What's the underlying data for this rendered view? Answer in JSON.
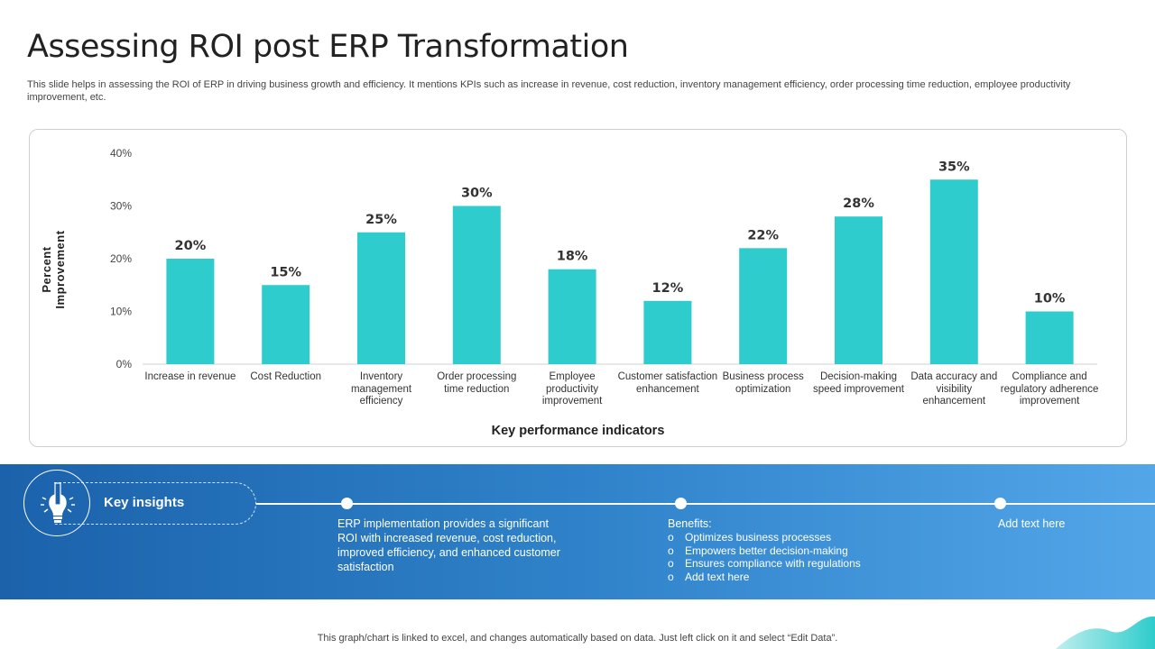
{
  "header": {
    "title": "Assessing ROI post ERP Transformation",
    "subtitle": "This slide helps in assessing the ROI of ERP in driving business growth and efficiency. It mentions KPIs such as increase in revenue, cost reduction, inventory management efficiency, order processing time reduction, employee productivity improvement, etc."
  },
  "chart_data": {
    "type": "bar",
    "categories": [
      "Increase in revenue",
      "Cost Reduction",
      "Inventory management efficiency",
      "Order processing time reduction",
      "Employee productivity improvement",
      "Customer satisfaction enhancement",
      "Business process optimization",
      "Decision-making speed improvement",
      "Data accuracy and visibility enhancement",
      "Compliance and regulatory adherence improvement"
    ],
    "values": [
      20,
      15,
      25,
      30,
      18,
      12,
      22,
      28,
      35,
      10
    ],
    "data_labels": [
      "20%",
      "15%",
      "25%",
      "30%",
      "18%",
      "12%",
      "22%",
      "28%",
      "35%",
      "10%"
    ],
    "xlabel": "Key performance indicators",
    "ylabel": "Percent Improvement",
    "ylim": [
      0,
      40
    ],
    "yticks": [
      "0%",
      "10%",
      "20%",
      "30%",
      "40%"
    ],
    "grid": false,
    "bar_color": "#2ecccc"
  },
  "insights": {
    "label": "Key insights",
    "icon": "lightbulb-pencil-icon",
    "text1": "ERP implementation provides a significant ROI with increased revenue, cost reduction, improved efficiency, and enhanced customer satisfaction",
    "benefits_title": "Benefits:",
    "bullet": "o",
    "benefits": [
      "Optimizes business processes",
      "Empowers better decision-making",
      "Ensures compliance with regulations",
      "Add text here"
    ],
    "text3": "Add text here"
  },
  "footer_note": "This graph/chart is linked to excel, and changes automatically based on data. Just left click on it and select “Edit Data”."
}
